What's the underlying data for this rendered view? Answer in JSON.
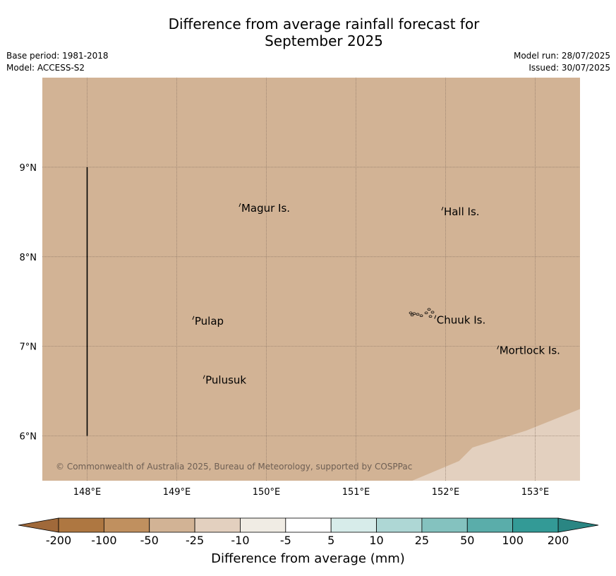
{
  "title": {
    "line1": "Difference from average rainfall forecast for",
    "line2": "September 2025"
  },
  "meta_left": {
    "base_period": "Base period: 1981-2018",
    "model": "Model: ACCESS-S2"
  },
  "meta_right": {
    "model_run": "Model run: 28/07/2025",
    "issued": "Issued: 30/07/2025"
  },
  "map": {
    "lon_range": [
      147.5,
      153.5
    ],
    "lat_range": [
      5.5,
      10.0
    ],
    "lon_ticks": [
      {
        "value": 148,
        "label": "148°E"
      },
      {
        "value": 149,
        "label": "149°E"
      },
      {
        "value": 150,
        "label": "150°E"
      },
      {
        "value": 151,
        "label": "151°E"
      },
      {
        "value": 152,
        "label": "152°E"
      },
      {
        "value": 153,
        "label": "153°E"
      }
    ],
    "lat_ticks": [
      {
        "value": 9,
        "label": "9°N"
      },
      {
        "value": 8,
        "label": "8°N"
      },
      {
        "value": 7,
        "label": "7°N"
      },
      {
        "value": 6,
        "label": "6°N"
      }
    ],
    "background_class": "-50 to -25",
    "background_color": "#d2b395",
    "se_region_class": "-25 to -10",
    "se_region_color": "#e3d0bf",
    "places": [
      {
        "name": "Magur Is.",
        "lon": 149.72,
        "lat": 8.55
      },
      {
        "name": "Hall Is.",
        "lon": 151.98,
        "lat": 8.51
      },
      {
        "name": "Pulap",
        "lon": 149.2,
        "lat": 7.29
      },
      {
        "name": "Chuuk Is.",
        "lon": 151.9,
        "lat": 7.3
      },
      {
        "name": "Mortlock Is.",
        "lon": 152.6,
        "lat": 6.96
      },
      {
        "name": "Pulusuk",
        "lon": 149.32,
        "lat": 6.63
      }
    ],
    "copyright": "© Commonwealth of Australia 2025, Bureau of Meteorology, supported by COSPPac"
  },
  "colorbar": {
    "title": "Difference from average (mm)",
    "ticks": [
      "-200",
      "-100",
      "-50",
      "-25",
      "-10",
      "-5",
      "5",
      "10",
      "25",
      "50",
      "100",
      "200"
    ],
    "colors": [
      "#ae7741",
      "#c0905f",
      "#d2b395",
      "#e3d0bf",
      "#f0ece4",
      "#ffffff",
      "#d7ecea",
      "#aed7d5",
      "#84c2bf",
      "#5aadaa",
      "#339a96"
    ],
    "extend_low_color": "#a0693a",
    "extend_high_color": "#2a8683"
  }
}
